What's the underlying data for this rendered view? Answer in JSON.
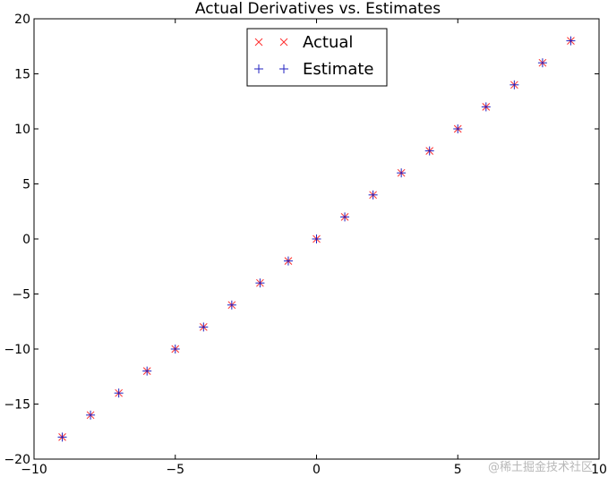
{
  "chart_data": {
    "type": "scatter",
    "title": "Actual Derivatives vs. Estimates",
    "xlabel": "",
    "ylabel": "",
    "xlim": [
      -10,
      10
    ],
    "ylim": [
      -20,
      20
    ],
    "x_ticks": [
      -10,
      -5,
      0,
      5,
      10
    ],
    "y_ticks": [
      -20,
      -15,
      -10,
      -5,
      0,
      5,
      10,
      15,
      20
    ],
    "x_tick_labels": [
      "−10",
      "−5",
      "0",
      "5",
      "10"
    ],
    "y_tick_labels": [
      "−20",
      "−15",
      "−10",
      "−5",
      "0",
      "5",
      "10",
      "15",
      "20"
    ],
    "grid": false,
    "legend_position": "top-center",
    "x": [
      -9,
      -8,
      -7,
      -6,
      -5,
      -4,
      -3,
      -2,
      -1,
      0,
      1,
      2,
      3,
      4,
      5,
      6,
      7,
      8,
      9
    ],
    "series": [
      {
        "name": "Actual",
        "marker": "x",
        "color": "#ff3030",
        "values": [
          -18,
          -16,
          -14,
          -12,
          -10,
          -8,
          -6,
          -4,
          -2,
          0,
          2,
          4,
          6,
          8,
          10,
          12,
          14,
          16,
          18
        ]
      },
      {
        "name": "Estimate",
        "marker": "+",
        "color": "#2020c0",
        "values": [
          -18,
          -16,
          -14,
          -12,
          -10,
          -8,
          -6,
          -4,
          -2,
          0,
          2,
          4,
          6,
          8,
          10,
          12,
          14,
          16,
          18
        ]
      }
    ]
  },
  "watermark": "@稀土掘金技术社区"
}
